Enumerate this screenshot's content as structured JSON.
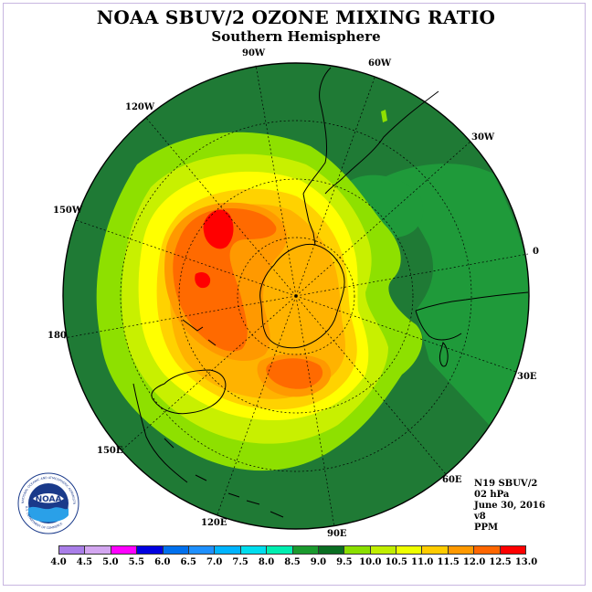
{
  "header": {
    "title": "NOAA SBUV/2 OZONE MIXING RATIO",
    "subtitle": "Southern Hemisphere"
  },
  "map": {
    "projection": "polar-stereographic-south",
    "longitude_labels": [
      "90W",
      "60W",
      "30W",
      "0",
      "30E",
      "60E",
      "90E",
      "120E",
      "150E",
      "180",
      "150W",
      "120W"
    ]
  },
  "info": {
    "satellite": "N19 SBUV/2",
    "pressure": "02 hPa",
    "date": "June 30, 2016",
    "version": "v8",
    "units": "PPM"
  },
  "logo": {
    "text": "NOAA",
    "ring_text": "NATIONAL OCEANIC AND ATMOSPHERIC ADMINISTRATION",
    "ring_text_bottom": "U.S. DEPARTMENT OF COMMERCE"
  },
  "legend": {
    "ticks": [
      "4.0",
      "4.5",
      "5.0",
      "5.5",
      "6.0",
      "6.5",
      "7.0",
      "7.5",
      "8.0",
      "8.5",
      "9.0",
      "9.5",
      "10.0",
      "10.5",
      "11.0",
      "11.5",
      "12.0",
      "12.5",
      "13.0"
    ],
    "colors": [
      "#a97ee8",
      "#d3a6f0",
      "#ff00ff",
      "#0000e0",
      "#0070ee",
      "#1e90ff",
      "#00b4ff",
      "#00ddee",
      "#00eeb0",
      "#1a9a2e",
      "#0a6e22",
      "#8adf00",
      "#c0ee00",
      "#eeff00",
      "#ffcc00",
      "#ff9900",
      "#ff6600",
      "#ff0000",
      "#8b4a2a"
    ]
  },
  "colors": {
    "outer_green": "#1f7a35",
    "mid_green": "#1f9a3a",
    "light_green": "#8ee000",
    "yellow_green": "#c8f000",
    "yellow": "#ffff00",
    "gold": "#ffd200",
    "orange_light": "#ffb300",
    "orange": "#ff9900",
    "orange_red": "#ff6a00",
    "red": "#ff0000"
  }
}
